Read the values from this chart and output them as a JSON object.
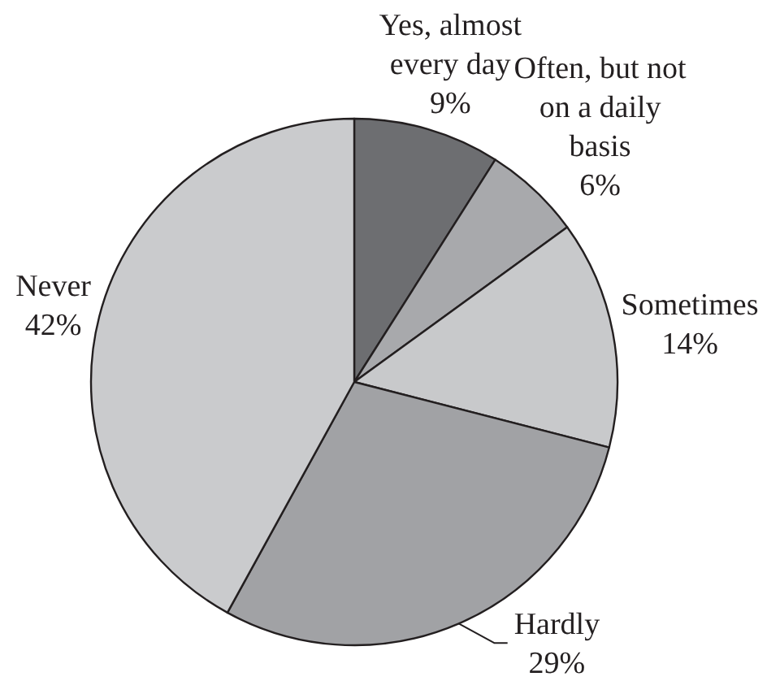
{
  "chart_data": {
    "type": "pie",
    "categories": [
      "Yes, almost every day",
      "Often, but not on a daily basis",
      "Sometimes",
      "Hardly",
      "Never"
    ],
    "values": [
      9,
      6,
      14,
      29,
      42
    ],
    "colors": [
      "#6d6e71",
      "#a8a9ac",
      "#c8c9cb",
      "#a1a2a5",
      "#cacbcd"
    ],
    "value_labels": [
      "9%",
      "6%",
      "14%",
      "29%",
      "42%"
    ]
  }
}
